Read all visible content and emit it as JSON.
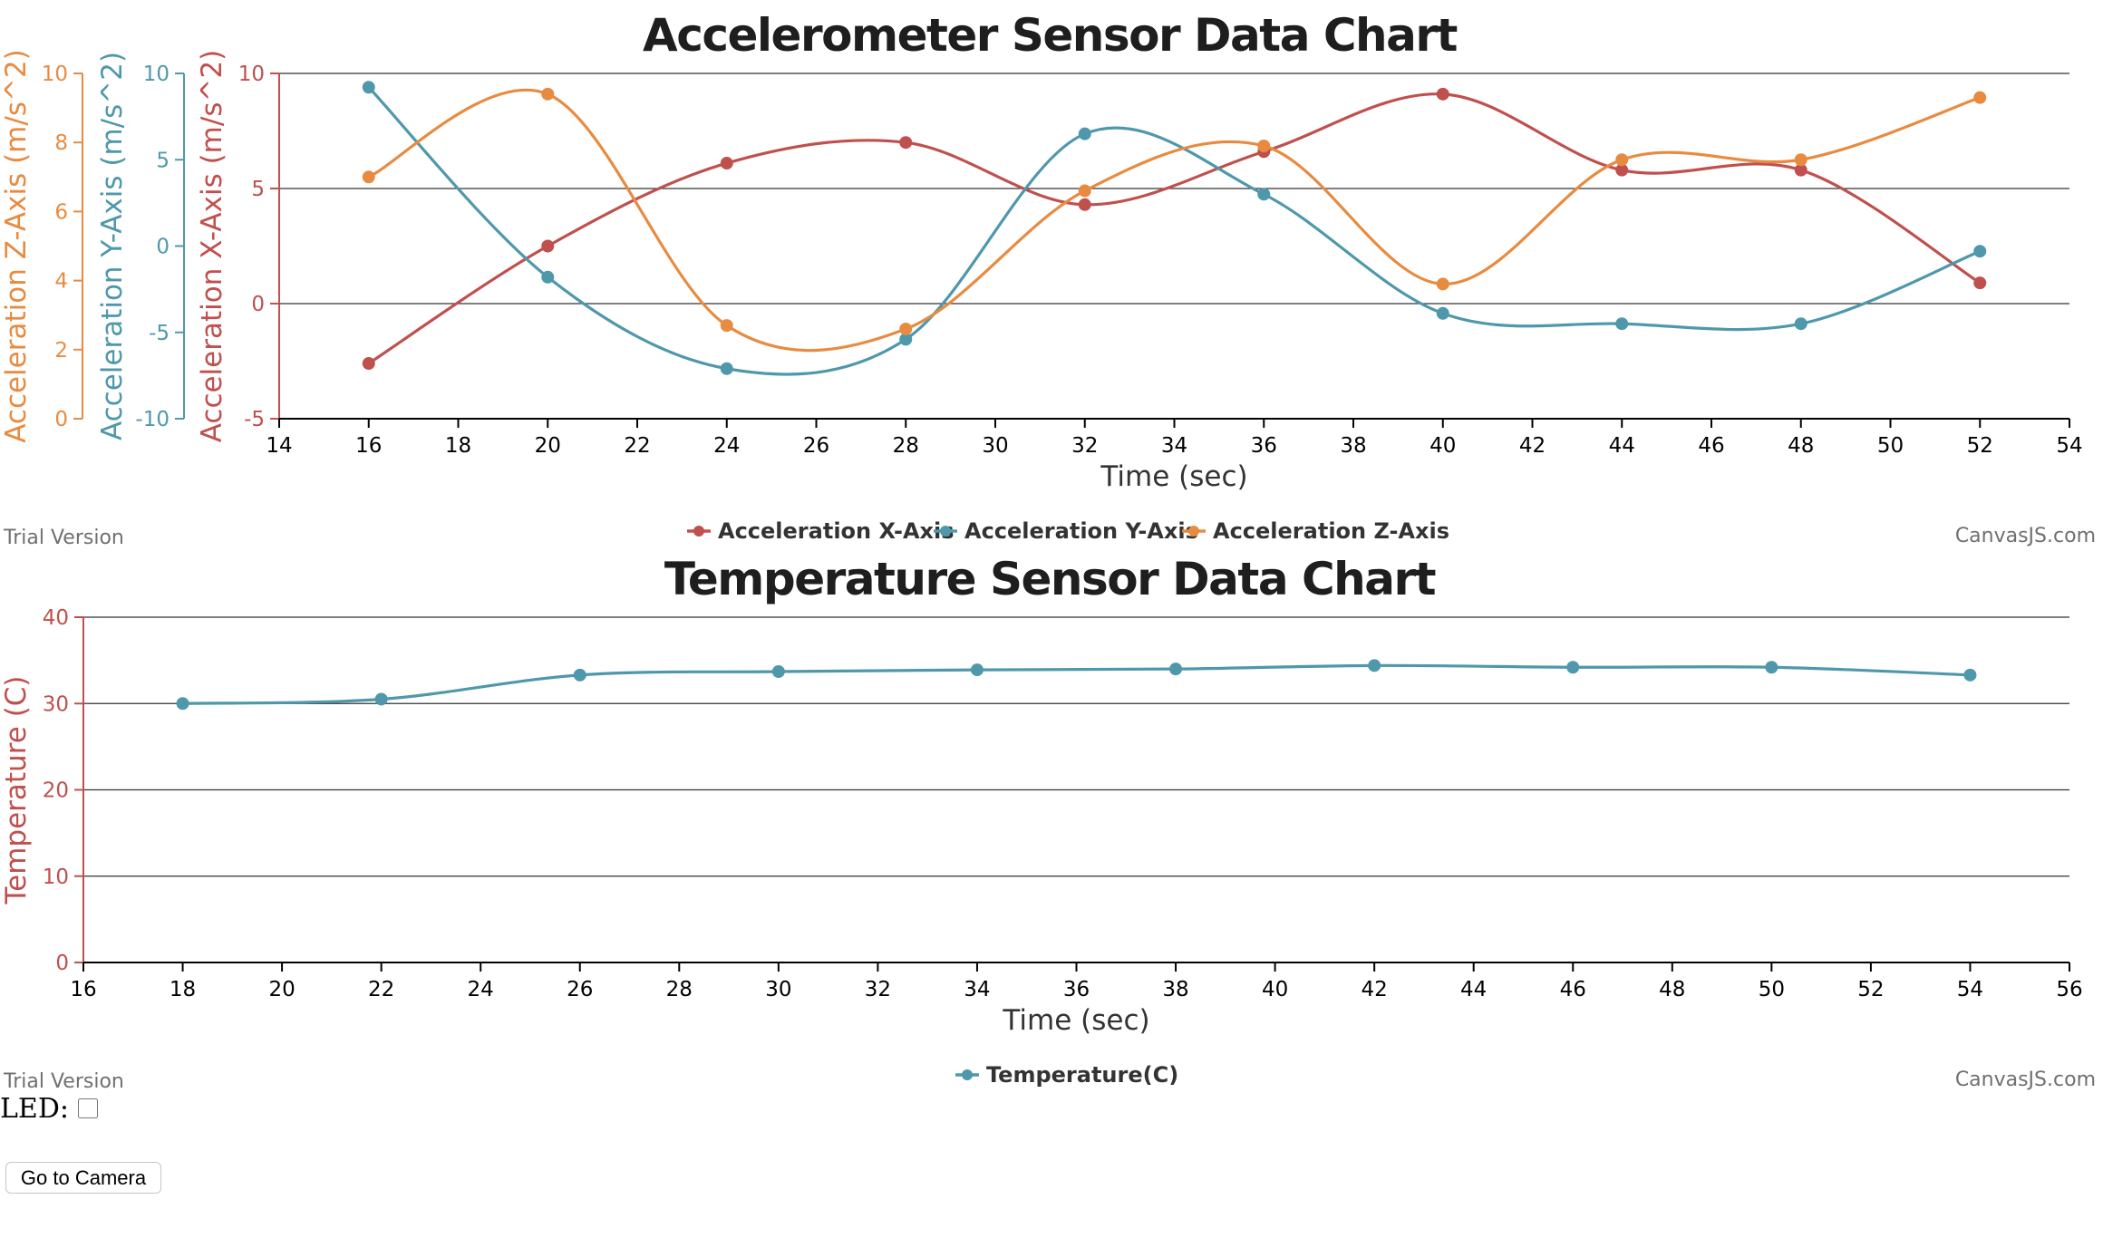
{
  "colors": {
    "x_axis": "#c0504e",
    "y_axis": "#4f98ab",
    "z_axis": "#e88b40",
    "temperature": "#4f98ab",
    "temp_axis": "#c0504e"
  },
  "chart_data": [
    {
      "type": "line",
      "title": "Accelerometer Sensor Data Chart",
      "xlabel": "Time (sec)",
      "xlim": [
        14,
        54
      ],
      "x_ticks": [
        14,
        16,
        18,
        20,
        22,
        24,
        26,
        28,
        30,
        32,
        34,
        36,
        38,
        40,
        42,
        44,
        46,
        48,
        50,
        52,
        54
      ],
      "x": [
        16,
        20,
        24,
        28,
        32,
        36,
        40,
        44,
        48,
        52
      ],
      "y_axes": [
        {
          "label": "Acceleration X-Axis (m/s^2)",
          "lim": [
            -5,
            10
          ],
          "ticks": [
            -5,
            0,
            5,
            10
          ]
        },
        {
          "label": "Acceleration Y-Axis (m/s^2)",
          "lim": [
            -10,
            10
          ],
          "ticks": [
            -10,
            -5,
            0,
            5,
            10
          ]
        },
        {
          "label": "Acceleration Z-Axis (m/s^2)",
          "lim": [
            0,
            10
          ],
          "ticks": [
            0,
            2,
            4,
            6,
            8,
            10
          ]
        }
      ],
      "series": [
        {
          "name": "Acceleration X-Axis",
          "values": [
            -2.6,
            2.5,
            6.1,
            7.0,
            4.3,
            6.6,
            9.1,
            5.8,
            5.8,
            0.9
          ]
        },
        {
          "name": "Acceleration Y-Axis",
          "values": [
            9.2,
            -1.8,
            -7.1,
            -5.4,
            6.5,
            3.0,
            -3.9,
            -4.5,
            -4.5,
            -0.3
          ]
        },
        {
          "name": "Acceleration Z-Axis",
          "values": [
            7.0,
            9.4,
            2.7,
            2.6,
            6.6,
            7.9,
            3.9,
            7.5,
            7.5,
            9.3
          ]
        }
      ],
      "grid": true,
      "legend_position": "bottom-center"
    },
    {
      "type": "line",
      "title": "Temperature Sensor Data Chart",
      "xlabel": "Time (sec)",
      "ylabel": "Temperature (C)",
      "xlim": [
        16,
        56
      ],
      "x_ticks": [
        16,
        18,
        20,
        22,
        24,
        26,
        28,
        30,
        32,
        34,
        36,
        38,
        40,
        42,
        44,
        46,
        48,
        50,
        52,
        54,
        56
      ],
      "ylim": [
        0,
        40
      ],
      "y_ticks": [
        0,
        10,
        20,
        30,
        40
      ],
      "x": [
        18,
        22,
        26,
        30,
        34,
        38,
        42,
        46,
        50,
        54
      ],
      "series": [
        {
          "name": "Temperature(C)",
          "values": [
            30.0,
            30.5,
            33.3,
            33.7,
            33.9,
            34.0,
            34.4,
            34.2,
            34.2,
            33.3
          ]
        }
      ],
      "grid": true,
      "legend_position": "bottom-center"
    }
  ],
  "watermarks": {
    "trial": "Trial Version",
    "brand": "CanvasJS.com"
  },
  "controls": {
    "led_label": "LED:",
    "led_checked": false,
    "camera_button": "Go to Camera"
  }
}
